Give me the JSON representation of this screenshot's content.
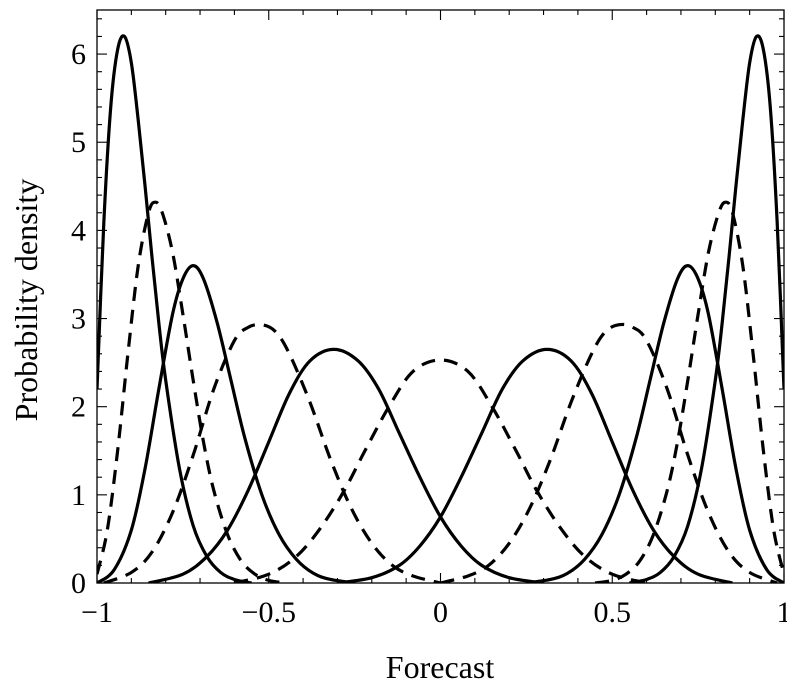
{
  "chart_data": {
    "type": "line",
    "title": "",
    "xlabel": "Forecast",
    "ylabel": "Probability density",
    "xlim": [
      -1,
      1
    ],
    "ylim": [
      0,
      6.5
    ],
    "xticks": [
      -1,
      -0.5,
      0,
      0.5,
      1
    ],
    "xtick_labels": [
      "−1",
      "−0.5",
      "0",
      "0.5",
      "1"
    ],
    "yticks": [
      0,
      1,
      2,
      3,
      4,
      5,
      6
    ],
    "ytick_labels": [
      "0",
      "1",
      "2",
      "3",
      "4",
      "5",
      "6"
    ],
    "grid": false,
    "legend": "none",
    "series": [
      {
        "style": "solid",
        "mode": -0.92,
        "peak": 6.2,
        "x": [
          -1,
          -0.98,
          -0.96,
          -0.94,
          -0.92,
          -0.9,
          -0.88,
          -0.86,
          -0.84,
          -0.82,
          -0.8,
          -0.76,
          -0.72,
          -0.68,
          -0.64,
          -0.6,
          -0.55
        ],
        "y": [
          2.2,
          4.1,
          5.4,
          6.05,
          6.2,
          5.9,
          5.25,
          4.5,
          3.7,
          2.95,
          2.3,
          1.3,
          0.65,
          0.3,
          0.12,
          0.04,
          0.0
        ]
      },
      {
        "style": "dashed",
        "mode": -0.83,
        "peak": 4.32,
        "x": [
          -1,
          -0.97,
          -0.94,
          -0.91,
          -0.88,
          -0.85,
          -0.83,
          -0.81,
          -0.78,
          -0.75,
          -0.72,
          -0.69,
          -0.66,
          -0.62,
          -0.58,
          -0.54,
          -0.5,
          -0.45
        ],
        "y": [
          0.1,
          0.6,
          1.5,
          2.6,
          3.6,
          4.2,
          4.32,
          4.2,
          3.75,
          3.05,
          2.3,
          1.6,
          1.05,
          0.55,
          0.25,
          0.1,
          0.03,
          0.0
        ]
      },
      {
        "style": "solid",
        "mode": -0.72,
        "peak": 3.6,
        "x": [
          -1,
          -0.95,
          -0.9,
          -0.86,
          -0.82,
          -0.78,
          -0.75,
          -0.72,
          -0.69,
          -0.65,
          -0.61,
          -0.57,
          -0.52,
          -0.47,
          -0.42,
          -0.37,
          -0.32,
          -0.25
        ],
        "y": [
          0.0,
          0.15,
          0.6,
          1.3,
          2.2,
          3.05,
          3.45,
          3.6,
          3.45,
          2.95,
          2.3,
          1.65,
          1.0,
          0.55,
          0.27,
          0.11,
          0.04,
          0.0
        ]
      },
      {
        "style": "dashed",
        "mode": -0.52,
        "peak": 2.93,
        "x": [
          -0.98,
          -0.9,
          -0.84,
          -0.78,
          -0.72,
          -0.66,
          -0.6,
          -0.56,
          -0.52,
          -0.48,
          -0.44,
          -0.38,
          -0.32,
          -0.26,
          -0.2,
          -0.14,
          -0.08,
          0.0
        ],
        "y": [
          0.0,
          0.12,
          0.35,
          0.8,
          1.45,
          2.2,
          2.75,
          2.9,
          2.93,
          2.85,
          2.6,
          2.05,
          1.4,
          0.85,
          0.45,
          0.2,
          0.08,
          0.0
        ]
      },
      {
        "style": "solid",
        "mode": -0.31,
        "peak": 2.65,
        "x": [
          -0.85,
          -0.75,
          -0.68,
          -0.62,
          -0.56,
          -0.5,
          -0.44,
          -0.38,
          -0.31,
          -0.24,
          -0.18,
          -0.12,
          -0.06,
          0.0,
          0.06,
          0.12,
          0.2,
          0.3
        ],
        "y": [
          0.0,
          0.1,
          0.3,
          0.6,
          1.05,
          1.6,
          2.15,
          2.52,
          2.65,
          2.52,
          2.2,
          1.7,
          1.2,
          0.75,
          0.42,
          0.2,
          0.06,
          0.0
        ]
      },
      {
        "style": "dashed",
        "mode": 0.0,
        "peak": 2.53,
        "x": [
          -0.6,
          -0.5,
          -0.42,
          -0.35,
          -0.28,
          -0.22,
          -0.15,
          -0.08,
          0.0,
          0.08,
          0.15,
          0.22,
          0.28,
          0.35,
          0.42,
          0.5,
          0.6
        ],
        "y": [
          0.0,
          0.1,
          0.3,
          0.62,
          1.05,
          1.5,
          2.0,
          2.4,
          2.53,
          2.4,
          2.0,
          1.5,
          1.05,
          0.62,
          0.3,
          0.1,
          0.0
        ]
      },
      {
        "style": "solid",
        "mode": 0.31,
        "peak": 2.65,
        "x": [
          -0.3,
          -0.2,
          -0.12,
          -0.06,
          0.0,
          0.06,
          0.12,
          0.18,
          0.24,
          0.31,
          0.38,
          0.44,
          0.5,
          0.56,
          0.62,
          0.68,
          0.75,
          0.85
        ],
        "y": [
          0.0,
          0.06,
          0.2,
          0.42,
          0.75,
          1.2,
          1.7,
          2.2,
          2.52,
          2.65,
          2.52,
          2.15,
          1.6,
          1.05,
          0.6,
          0.3,
          0.1,
          0.0
        ]
      },
      {
        "style": "dashed",
        "mode": 0.52,
        "peak": 2.93,
        "x": [
          0.0,
          0.08,
          0.14,
          0.2,
          0.26,
          0.32,
          0.38,
          0.44,
          0.48,
          0.52,
          0.56,
          0.6,
          0.66,
          0.72,
          0.78,
          0.84,
          0.9,
          0.98
        ],
        "y": [
          0.0,
          0.08,
          0.2,
          0.45,
          0.85,
          1.4,
          2.05,
          2.6,
          2.85,
          2.93,
          2.9,
          2.75,
          2.2,
          1.45,
          0.8,
          0.35,
          0.12,
          0.0
        ]
      },
      {
        "style": "solid",
        "mode": 0.72,
        "peak": 3.6,
        "x": [
          0.25,
          0.32,
          0.37,
          0.42,
          0.47,
          0.52,
          0.57,
          0.61,
          0.65,
          0.69,
          0.72,
          0.75,
          0.78,
          0.82,
          0.86,
          0.9,
          0.95,
          1.0
        ],
        "y": [
          0.0,
          0.04,
          0.11,
          0.27,
          0.55,
          1.0,
          1.65,
          2.3,
          2.95,
          3.45,
          3.6,
          3.45,
          3.05,
          2.2,
          1.3,
          0.6,
          0.15,
          0.0
        ]
      },
      {
        "style": "dashed",
        "mode": 0.83,
        "peak": 4.32,
        "x": [
          0.45,
          0.5,
          0.54,
          0.58,
          0.62,
          0.66,
          0.69,
          0.72,
          0.75,
          0.78,
          0.81,
          0.83,
          0.85,
          0.88,
          0.91,
          0.94,
          0.97,
          1.0
        ],
        "y": [
          0.0,
          0.03,
          0.1,
          0.25,
          0.55,
          1.05,
          1.6,
          2.3,
          3.05,
          3.75,
          4.2,
          4.32,
          4.2,
          3.6,
          2.6,
          1.5,
          0.6,
          0.1
        ]
      },
      {
        "style": "solid",
        "mode": 0.92,
        "peak": 6.2,
        "x": [
          0.55,
          0.6,
          0.64,
          0.68,
          0.72,
          0.76,
          0.8,
          0.82,
          0.84,
          0.86,
          0.88,
          0.9,
          0.92,
          0.94,
          0.96,
          0.98,
          1.0
        ],
        "y": [
          0.0,
          0.04,
          0.12,
          0.3,
          0.65,
          1.3,
          2.3,
          2.95,
          3.7,
          4.5,
          5.25,
          5.9,
          6.2,
          6.05,
          5.4,
          4.1,
          2.2
        ]
      }
    ]
  }
}
